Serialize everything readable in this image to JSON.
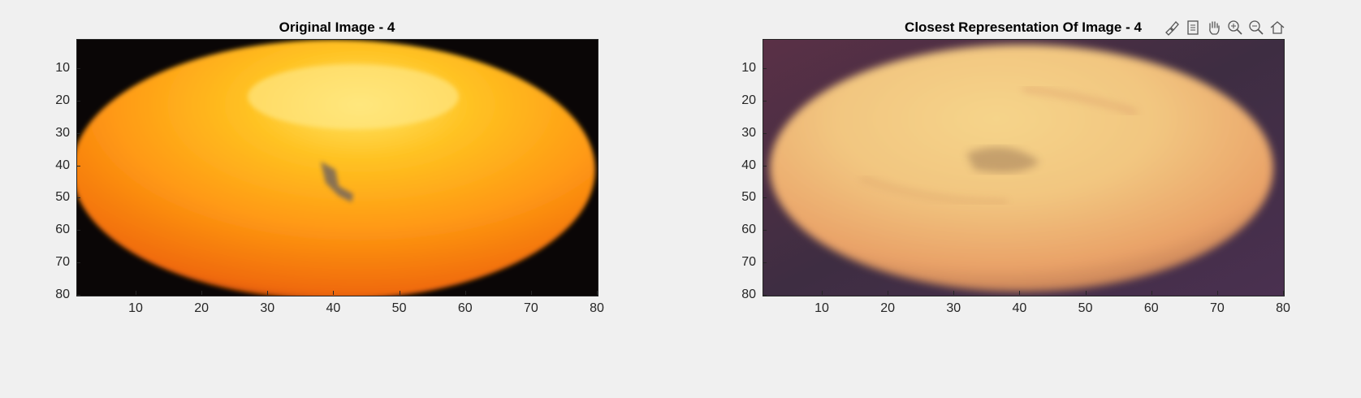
{
  "chart_data": [
    {
      "type": "image",
      "title": "Original Image - 4",
      "xlim": [
        1,
        80
      ],
      "ylim": [
        1,
        80
      ],
      "y_reversed": true,
      "x_ticks": [
        10,
        20,
        30,
        40,
        50,
        60,
        70,
        80
      ],
      "y_ticks": [
        10,
        20,
        30,
        40,
        50,
        60,
        70,
        80
      ],
      "colors": {
        "background": "#0a0606",
        "fruit_light": "#ffe566",
        "fruit_mid": "#ff9a14",
        "fruit_dark": "#8a1a00",
        "blemish": "#7d6a58"
      }
    },
    {
      "type": "image",
      "title": "Closest Representation Of Image - 4",
      "xlim": [
        1,
        80
      ],
      "ylim": [
        1,
        80
      ],
      "y_reversed": true,
      "x_ticks": [
        10,
        20,
        30,
        40,
        50,
        60,
        70,
        80
      ],
      "y_ticks": [
        10,
        20,
        30,
        40,
        50,
        60,
        70,
        80
      ],
      "colors": {
        "background": "#3e2d42",
        "fruit_light": "#f2c680",
        "fruit_mid": "#e9a268",
        "fruit_dark": "#a9654a",
        "blemish": "#8e6a50"
      }
    }
  ],
  "toolbar": {
    "icons": [
      "brush-icon",
      "datatip-icon",
      "pan-hand-icon",
      "zoom-in-icon",
      "zoom-out-icon",
      "home-icon"
    ]
  }
}
